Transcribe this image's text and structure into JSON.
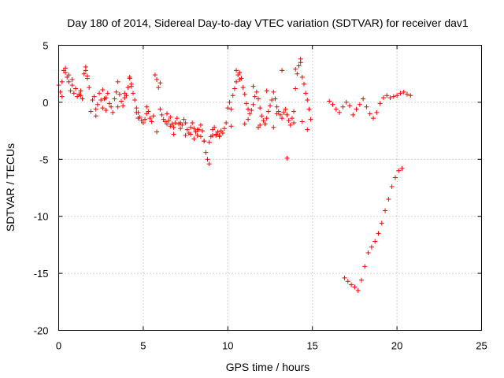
{
  "chart_data": {
    "type": "scatter",
    "title": "Day 180 of 2014, Sidereal Day-to-day VTEC variation (SDTVAR) for receiver dav1",
    "xlabel": "GPS time / hours",
    "ylabel": "SDTVAR / TECUs",
    "xlim": [
      0,
      25
    ],
    "ylim": [
      -20,
      5
    ],
    "xticks": [
      0,
      5,
      10,
      15,
      20,
      25
    ],
    "xtick_labels": [
      "0",
      "5",
      "10",
      "15",
      "20",
      "25"
    ],
    "yticks": [
      5,
      0,
      -5,
      -10,
      -15,
      -20
    ],
    "ytick_labels": [
      "5",
      "0",
      "-5",
      "-10",
      "-15",
      "-20"
    ],
    "grid": true,
    "marker": "+",
    "color": "#ff0000",
    "series": [
      {
        "name": "SDTVAR",
        "x": [
          0.0,
          0.1,
          0.2,
          0.3,
          0.4,
          0.5,
          0.6,
          0.7,
          0.8,
          0.9,
          1.0,
          1.1,
          1.2,
          1.3,
          1.4,
          1.5,
          1.6,
          1.7,
          1.8,
          1.9,
          2.0,
          2.1,
          2.2,
          2.3,
          2.4,
          2.5,
          2.6,
          2.7,
          2.8,
          2.9,
          3.0,
          3.1,
          3.2,
          3.3,
          3.4,
          3.5,
          3.6,
          3.7,
          3.8,
          3.9,
          4.0,
          4.1,
          4.2,
          4.3,
          4.4,
          4.5,
          4.6,
          4.7,
          4.8,
          4.9,
          5.0,
          5.1,
          5.2,
          5.3,
          5.4,
          5.5,
          5.6,
          5.7,
          5.8,
          5.9,
          6.0,
          6.1,
          6.2,
          6.3,
          6.4,
          6.5,
          6.6,
          6.7,
          6.8,
          6.9,
          7.0,
          7.1,
          7.2,
          7.3,
          7.4,
          7.5,
          7.6,
          7.7,
          7.8,
          7.9,
          8.0,
          8.1,
          8.2,
          8.3,
          8.4,
          8.5,
          8.6,
          8.7,
          8.8,
          8.9,
          9.0,
          9.1,
          9.2,
          9.3,
          9.4,
          9.5,
          9.6,
          9.7,
          9.8,
          9.9,
          10.0,
          10.1,
          10.2,
          10.3,
          10.4,
          10.5,
          10.6,
          10.7,
          10.8,
          10.9,
          11.0,
          11.1,
          11.2,
          11.3,
          11.4,
          11.5,
          11.6,
          11.7,
          11.8,
          11.9,
          12.0,
          12.1,
          12.2,
          12.3,
          12.4,
          12.5,
          12.6,
          12.7,
          12.8,
          12.9,
          13.0,
          13.1,
          13.2,
          13.3,
          13.4,
          13.5,
          13.6,
          13.7,
          13.8,
          13.9,
          14.0,
          14.1,
          14.2,
          14.3,
          14.4,
          14.5,
          14.6,
          14.7,
          14.8,
          14.9,
          16.0,
          16.2,
          16.4,
          16.6,
          16.8,
          17.0,
          17.2,
          17.4,
          17.6,
          17.8,
          18.0,
          18.2,
          18.4,
          18.6,
          18.8,
          19.0,
          19.2,
          19.4,
          19.6,
          19.8,
          20.0,
          20.2,
          20.4,
          20.6,
          20.8,
          16.9,
          17.1,
          17.3,
          17.5,
          17.7,
          17.9,
          18.1,
          18.3,
          18.5,
          18.7,
          18.9,
          19.1,
          19.3,
          19.5,
          19.7,
          19.9,
          20.1,
          20.3,
          0.4,
          0.6,
          0.8,
          1.6,
          1.7,
          2.2,
          2.6,
          3.5,
          4.2,
          4.3,
          4.6,
          4.7,
          5.8,
          6.0,
          6.4,
          6.8,
          7.5,
          8.0,
          8.2,
          8.6,
          8.9,
          9.1,
          9.5,
          10.5,
          10.7,
          11.2,
          11.5,
          11.9,
          12.3,
          12.7,
          13.2,
          13.5,
          14.0,
          14.3,
          14.7,
          0.2,
          1.3,
          2.8,
          3.9,
          5.2,
          6.6,
          7.2,
          7.8,
          8.4,
          9.3,
          10.2,
          11.0,
          11.8,
          12.9,
          13.9,
          14.4
        ],
        "y": [
          1.5,
          0.9,
          1.8,
          2.8,
          2.6,
          2.2,
          1.8,
          1.0,
          1.5,
          0.8,
          1.2,
          0.5,
          0.7,
          1.0,
          0.3,
          2.5,
          2.8,
          2.1,
          1.3,
          -0.8,
          0.2,
          0.5,
          -0.6,
          -0.2,
          0.8,
          0.2,
          -0.5,
          0.3,
          0.4,
          0.8,
          -0.1,
          -0.4,
          -0.9,
          0.3,
          0.9,
          1.8,
          0.7,
          0.1,
          -0.3,
          0.4,
          0.6,
          1.3,
          2.1,
          1.6,
          0.8,
          0.2,
          -0.5,
          -0.9,
          -1.3,
          -1.6,
          -1.8,
          -1.5,
          -1.0,
          -0.8,
          -1.4,
          -1.7,
          -1.2,
          2.4,
          2.0,
          1.3,
          -0.6,
          -1.1,
          -1.5,
          -1.7,
          -1.9,
          -1.6,
          -1.3,
          -1.9,
          -2.2,
          -1.8,
          -1.4,
          -1.9,
          -2.3,
          -2.0,
          -1.5,
          -1.8,
          -2.4,
          -2.7,
          -2.2,
          -1.8,
          -2.3,
          -2.6,
          -2.9,
          -2.4,
          -2.0,
          -2.5,
          -3.4,
          -4.4,
          -5.0,
          -5.4,
          -3.0,
          -2.4,
          -2.2,
          -2.8,
          -2.6,
          -3.0,
          -2.5,
          -2.7,
          -2.3,
          -1.8,
          -0.5,
          0.0,
          -0.6,
          0.6,
          1.2,
          1.8,
          2.4,
          2.6,
          2.1,
          1.3,
          0.7,
          -0.1,
          -0.6,
          -1.0,
          -0.7,
          -0.2,
          0.5,
          0.9,
          0.3,
          -0.5,
          -1.2,
          -1.6,
          -1.9,
          -1.4,
          -0.8,
          -0.3,
          0.2,
          0.9,
          0.3,
          -0.4,
          -0.8,
          -1.1,
          -1.4,
          -0.9,
          -0.6,
          -1.1,
          -1.6,
          -2.0,
          -1.4,
          -0.8,
          1.2,
          2.5,
          3.2,
          3.8,
          2.2,
          1.6,
          0.8,
          0.2,
          -0.6,
          -1.5,
          0.1,
          -0.2,
          -0.6,
          -0.9,
          -0.4,
          0.0,
          -0.3,
          -1.1,
          -0.6,
          -0.2,
          0.3,
          -0.4,
          -1.0,
          -1.4,
          -0.9,
          -0.1,
          0.4,
          0.6,
          0.4,
          0.5,
          0.6,
          0.8,
          0.9,
          0.7,
          0.6,
          -15.4,
          -15.7,
          -16.0,
          -16.2,
          -16.5,
          -15.6,
          -14.4,
          -13.2,
          -12.7,
          -12.2,
          -11.5,
          -10.6,
          -9.5,
          -8.5,
          -7.4,
          -6.6,
          -6.0,
          -5.8,
          3.0,
          2.4,
          2.0,
          3.1,
          2.3,
          -1.2,
          1.1,
          -0.4,
          2.2,
          1.4,
          -0.9,
          -1.4,
          -2.6,
          1.7,
          -1.0,
          -2.8,
          -2.9,
          -3.2,
          -2.4,
          -3.4,
          -3.5,
          -2.9,
          -2.9,
          2.8,
          2.0,
          -1.5,
          1.4,
          -2.0,
          1.0,
          -2.2,
          2.8,
          -4.9,
          2.9,
          3.5,
          -2.4,
          0.5,
          0.6,
          -0.7,
          0.8,
          -0.4,
          -2.1,
          -1.8,
          -2.8,
          -3.0,
          -2.9,
          -2.1,
          -1.9,
          -2.2,
          -1.0,
          -1.8,
          -1.7
        ]
      }
    ]
  }
}
